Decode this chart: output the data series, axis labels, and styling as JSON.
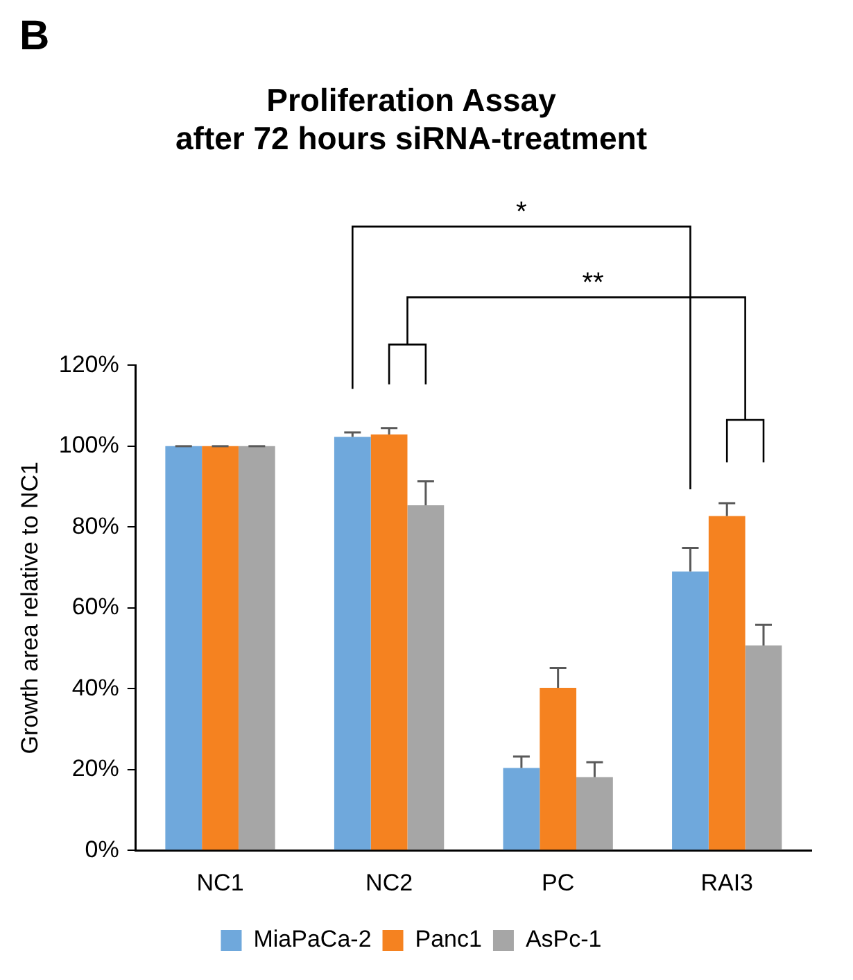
{
  "chart_data": {
    "type": "bar",
    "title": "Proliferation Assay\nafter 72 hours siRNA-treatment",
    "ylabel": "Growth area relative to NC1",
    "categories": [
      "NC1",
      "NC2",
      "PC",
      "RAI3"
    ],
    "series": [
      {
        "name": "MiaPaCa-2",
        "color": "#6fa8dc",
        "values": [
          100,
          102.3,
          20.4,
          69
        ],
        "errors": [
          0,
          1.1,
          2.8,
          5.8
        ]
      },
      {
        "name": "Panc1",
        "color": "#f58220",
        "values": [
          100,
          102.9,
          40.2,
          82.7
        ],
        "errors": [
          0,
          1.6,
          4.9,
          3.2
        ]
      },
      {
        "name": "AsPc-1",
        "color": "#a6a6a6",
        "values": [
          100,
          85.4,
          18.1,
          50.7
        ],
        "errors": [
          0,
          5.9,
          3.7,
          5.1
        ]
      }
    ],
    "ylim": [
      0,
      120
    ],
    "yticks": [
      {
        "value": 0,
        "label": "0%"
      },
      {
        "value": 20,
        "label": "20%"
      },
      {
        "value": 40,
        "label": "40%"
      },
      {
        "value": 60,
        "label": "60%"
      },
      {
        "value": 80,
        "label": "80%"
      },
      {
        "value": 100,
        "label": "100%"
      },
      {
        "value": 120,
        "label": "120%"
      }
    ],
    "grid": false,
    "legend": "bottom",
    "annotations": [
      "B",
      "*",
      "**"
    ]
  }
}
